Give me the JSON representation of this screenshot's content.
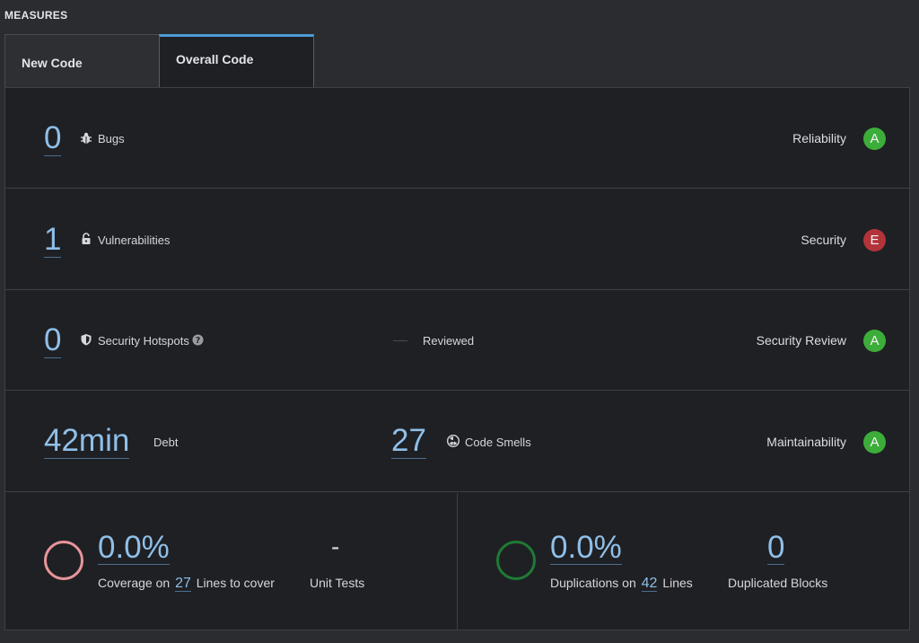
{
  "section_title": "MEASURES",
  "tabs": [
    {
      "label": "New Code",
      "active": false
    },
    {
      "label": "Overall Code",
      "active": true
    }
  ],
  "rows": {
    "bugs": {
      "value": "0",
      "label": "Bugs",
      "rating_label": "Reliability",
      "rating": "A",
      "rating_color": "#3dad3a",
      "icon": "bug-icon"
    },
    "vulnerabilities": {
      "value": "1",
      "label": "Vulnerabilities",
      "rating_label": "Security",
      "rating": "E",
      "rating_color": "#b2343a",
      "icon": "unlock-icon"
    },
    "hotspots": {
      "value": "0",
      "label": "Security Hotspots",
      "reviewed_label": "Reviewed",
      "reviewed_value": "—",
      "rating_label": "Security Review",
      "rating": "A",
      "rating_color": "#3dad3a",
      "icon": "shield-icon"
    },
    "maintainability": {
      "debt_value": "42min",
      "debt_label": "Debt",
      "smells_value": "27",
      "smells_label": "Code Smells",
      "rating_label": "Maintainability",
      "rating": "A",
      "rating_color": "#3dad3a",
      "icon": "code-smell-icon"
    }
  },
  "coverage": {
    "value": "0.0%",
    "prefix": "Coverage on",
    "lines": "27",
    "suffix": "Lines to cover",
    "unit_tests_value": "-",
    "unit_tests_label": "Unit Tests",
    "ring_color": "#e8959a"
  },
  "duplications": {
    "value": "0.0%",
    "prefix": "Duplications on",
    "lines": "42",
    "suffix": "Lines",
    "blocks_value": "0",
    "blocks_label": "Duplicated Blocks",
    "ring_color": "#1f7a35"
  }
}
